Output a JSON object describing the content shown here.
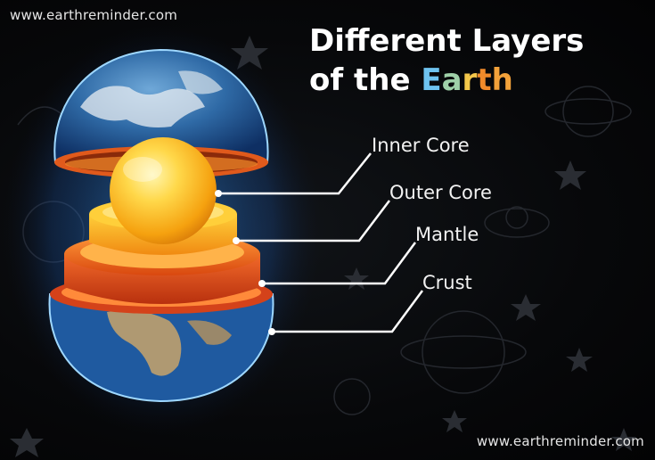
{
  "watermark_top": "www.earthreminder.com",
  "watermark_bottom": "www.earthreminder.com",
  "title": {
    "line1": "Different Layers",
    "line2_prefix": "of the ",
    "earth_letters": [
      {
        "char": "E",
        "color": "#6ec3f0"
      },
      {
        "char": "a",
        "color": "#9fd0a8"
      },
      {
        "char": "r",
        "color": "#f3c64a"
      },
      {
        "char": "t",
        "color": "#f08a2a"
      },
      {
        "char": "h",
        "color": "#f2a13a"
      }
    ]
  },
  "labels": {
    "inner_core": "Inner Core",
    "outer_core": "Outer Core",
    "mantle": "Mantle",
    "crust": "Crust"
  },
  "colors": {
    "background": "#050608",
    "ocean": "#2a6db5",
    "atmosphere_glow": "#4aa8ff",
    "inner_core": "#ffd84a",
    "outer_core": "#ffb21e",
    "mantle": "#f26a1b",
    "crust_rim": "#e0461a",
    "leader_lines": "#ffffff"
  }
}
